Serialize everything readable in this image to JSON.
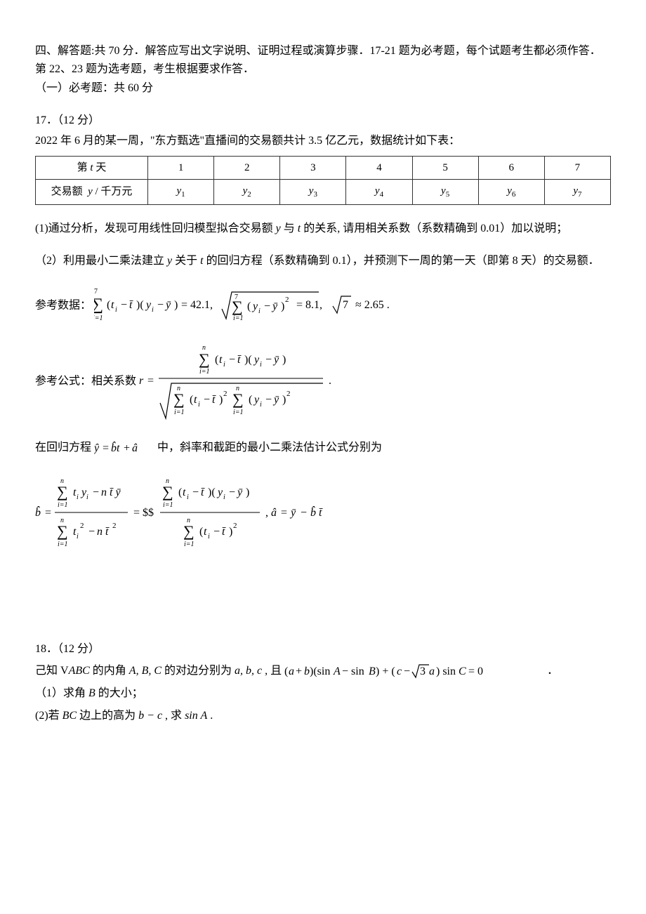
{
  "header": {
    "line1": "四、解答题:共 70 分．解答应写出文字说明、证明过程或演算步骤．17-21 题为必考题，每个试题考生都必须作答．第 22、23 题为选考题，考生根据要求作答．",
    "line2": "（一）必考题：共 60 分"
  },
  "q17": {
    "title": "17．（12 分）",
    "intro": "2022 年 6 月的某一周，\"东方甄选\"直播间的交易额共计 3.5 亿乙元，数据统计如下表：",
    "table": {
      "row1_label_html": "第 <span class=\"italic\">t</span> 天",
      "row1_cells": [
        "1",
        "2",
        "3",
        "4",
        "5",
        "6",
        "7"
      ],
      "row2_label_html": "交易额&nbsp;&nbsp;<span class=\"italic\">y</span> / 千万元",
      "row2_cells": [
        "y1",
        "y2",
        "y3",
        "y4",
        "y5",
        "y6",
        "y7"
      ]
    },
    "p1_prefix": "(1)通过分析，发现可用线性回归模型拟合交易额 ",
    "p1_mid1": " 与 ",
    "p1_mid2": " 的关系, 请用相关系数（系数精确到 0.01）加以说明；",
    "p2_prefix": "（2）利用最小二乘法建立 ",
    "p2_mid1": " 关于 ",
    "p2_mid2": " 的回归方程（系数精确到 0.1），并预测下一周的第一天（即第 8 天）的交易额．",
    "ref_data_label": "参考数据：",
    "ref_formula_label": "参考公式：相关系数 ",
    "regression_text_prefix": "在回归方程 ",
    "regression_text_suffix": " 中，斜率和截距的最小二乘法估计公式分别为",
    "var_y": "y",
    "var_t": "t"
  },
  "q18": {
    "title": "18．（12 分）",
    "intro_prefix": "己知 V",
    "intro_mid1": " 的内角 ",
    "intro_mid2": " 的对边分别为 ",
    "intro_mid3": " , 且 ",
    "intro_suffix": " ．",
    "abc_upper": "A, B, C",
    "abc_lower": "a, b, c",
    "triangle": "ABC",
    "p1": "（1）求角 ",
    "p1_var": "B",
    "p1_suffix": " 的大小；",
    "p2_prefix": "(2)若 ",
    "p2_bc": "BC",
    "p2_mid": " 边上的高为 ",
    "p2_expr": "b − c",
    "p2_mid2": " , 求 ",
    "p2_sina": "sin A",
    "p2_suffix": " ."
  },
  "svg": {
    "font_family": "Times New Roman, serif",
    "color_text": "#000000",
    "stroke_width_thin": 1,
    "stroke_width_sqrt": 1.2
  }
}
